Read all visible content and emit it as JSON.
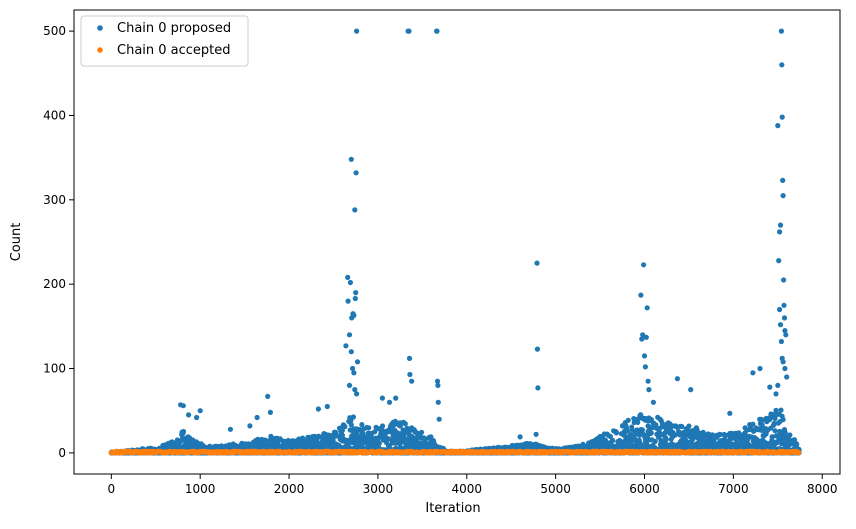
{
  "chart_data": {
    "type": "scatter",
    "xlabel": "Iteration",
    "ylabel": "Count",
    "xlim": [
      -420,
      8200
    ],
    "ylim": [
      -25,
      525
    ],
    "xticks": [
      0,
      1000,
      2000,
      3000,
      4000,
      5000,
      6000,
      7000,
      8000
    ],
    "yticks": [
      0,
      100,
      200,
      300,
      400,
      500
    ],
    "legend_position": "top-left",
    "grid": false,
    "series": [
      {
        "name": "Chain 0 proposed",
        "color": "#1f77b4",
        "x_range": [
          0,
          7740
        ],
        "baseline_points": [
          [
            0,
            1
          ],
          [
            100,
            2
          ],
          [
            200,
            3
          ],
          [
            300,
            4
          ],
          [
            400,
            6
          ],
          [
            500,
            5
          ],
          [
            600,
            10
          ],
          [
            700,
            14
          ],
          [
            750,
            20
          ],
          [
            800,
            30
          ],
          [
            850,
            22
          ],
          [
            900,
            18
          ],
          [
            1000,
            12
          ],
          [
            1100,
            8
          ],
          [
            1200,
            8
          ],
          [
            1300,
            10
          ],
          [
            1400,
            12
          ],
          [
            1500,
            14
          ],
          [
            1600,
            16
          ],
          [
            1700,
            18
          ],
          [
            1800,
            20
          ],
          [
            1900,
            18
          ],
          [
            2000,
            17
          ],
          [
            2100,
            18
          ],
          [
            2200,
            20
          ],
          [
            2300,
            22
          ],
          [
            2400,
            25
          ],
          [
            2500,
            28
          ],
          [
            2600,
            32
          ],
          [
            2700,
            45
          ],
          [
            2750,
            40
          ],
          [
            2800,
            35
          ],
          [
            2900,
            30
          ],
          [
            3000,
            32
          ],
          [
            3100,
            35
          ],
          [
            3200,
            38
          ],
          [
            3300,
            40
          ],
          [
            3400,
            30
          ],
          [
            3500,
            25
          ],
          [
            3600,
            20
          ],
          [
            3700,
            8
          ],
          [
            3800,
            2
          ],
          [
            3900,
            2
          ],
          [
            4000,
            3
          ],
          [
            4100,
            4
          ],
          [
            4200,
            5
          ],
          [
            4300,
            6
          ],
          [
            4400,
            7
          ],
          [
            4500,
            9
          ],
          [
            4600,
            10
          ],
          [
            4700,
            12
          ],
          [
            4800,
            10
          ],
          [
            4900,
            6
          ],
          [
            5000,
            6
          ],
          [
            5100,
            6
          ],
          [
            5200,
            8
          ],
          [
            5300,
            10
          ],
          [
            5400,
            14
          ],
          [
            5500,
            20
          ],
          [
            5600,
            25
          ],
          [
            5700,
            30
          ],
          [
            5800,
            38
          ],
          [
            5900,
            45
          ],
          [
            6000,
            50
          ],
          [
            6100,
            45
          ],
          [
            6200,
            40
          ],
          [
            6300,
            38
          ],
          [
            6400,
            35
          ],
          [
            6500,
            32
          ],
          [
            6600,
            30
          ],
          [
            6700,
            25
          ],
          [
            6800,
            22
          ],
          [
            6900,
            22
          ],
          [
            7000,
            24
          ],
          [
            7100,
            28
          ],
          [
            7200,
            35
          ],
          [
            7300,
            42
          ],
          [
            7400,
            48
          ],
          [
            7500,
            55
          ],
          [
            7560,
            60
          ],
          [
            7600,
            30
          ],
          [
            7700,
            15
          ],
          [
            7740,
            10
          ]
        ],
        "outliers": [
          [
            780,
            57
          ],
          [
            810,
            56
          ],
          [
            870,
            45
          ],
          [
            960,
            42
          ],
          [
            1000,
            50
          ],
          [
            1340,
            28
          ],
          [
            1560,
            32
          ],
          [
            1640,
            42
          ],
          [
            1760,
            67
          ],
          [
            1790,
            48
          ],
          [
            2330,
            52
          ],
          [
            2430,
            55
          ],
          [
            2640,
            127
          ],
          [
            2660,
            208
          ],
          [
            2690,
            202
          ],
          [
            2700,
            348
          ],
          [
            2705,
            160
          ],
          [
            2720,
            165
          ],
          [
            2730,
            163
          ],
          [
            2740,
            288
          ],
          [
            2745,
            183
          ],
          [
            2750,
            190
          ],
          [
            2755,
            332
          ],
          [
            2760,
            500
          ],
          [
            2770,
            108
          ],
          [
            2665,
            180
          ],
          [
            2680,
            140
          ],
          [
            2700,
            120
          ],
          [
            2715,
            100
          ],
          [
            2730,
            95
          ],
          [
            2680,
            80
          ],
          [
            2740,
            75
          ],
          [
            2760,
            70
          ],
          [
            3050,
            65
          ],
          [
            3130,
            60
          ],
          [
            3200,
            65
          ],
          [
            3340,
            500
          ],
          [
            3350,
            500
          ],
          [
            3355,
            112
          ],
          [
            3360,
            93
          ],
          [
            3380,
            85
          ],
          [
            3660,
            500
          ],
          [
            3665,
            500
          ],
          [
            3670,
            85
          ],
          [
            3675,
            80
          ],
          [
            3680,
            60
          ],
          [
            3690,
            40
          ],
          [
            4790,
            225
          ],
          [
            4795,
            123
          ],
          [
            4800,
            77
          ],
          [
            4780,
            22
          ],
          [
            4600,
            19
          ],
          [
            5960,
            187
          ],
          [
            5990,
            223
          ],
          [
            6000,
            115
          ],
          [
            6010,
            102
          ],
          [
            6020,
            137
          ],
          [
            6030,
            172
          ],
          [
            5980,
            140
          ],
          [
            5970,
            135
          ],
          [
            6040,
            85
          ],
          [
            6050,
            75
          ],
          [
            6100,
            60
          ],
          [
            6370,
            88
          ],
          [
            6520,
            75
          ],
          [
            6960,
            47
          ],
          [
            7220,
            95
          ],
          [
            7300,
            100
          ],
          [
            7410,
            78
          ],
          [
            7500,
            388
          ],
          [
            7510,
            228
          ],
          [
            7520,
            262
          ],
          [
            7530,
            270
          ],
          [
            7540,
            500
          ],
          [
            7545,
            460
          ],
          [
            7550,
            398
          ],
          [
            7555,
            323
          ],
          [
            7560,
            305
          ],
          [
            7565,
            205
          ],
          [
            7570,
            175
          ],
          [
            7575,
            160
          ],
          [
            7580,
            145
          ],
          [
            7590,
            140
          ],
          [
            7520,
            170
          ],
          [
            7530,
            152
          ],
          [
            7540,
            132
          ],
          [
            7550,
            112
          ],
          [
            7560,
            108
          ],
          [
            7580,
            100
          ],
          [
            7600,
            90
          ],
          [
            7500,
            80
          ],
          [
            7480,
            70
          ]
        ]
      },
      {
        "name": "Chain 0 accepted",
        "color": "#ff7f0e",
        "x_range": [
          0,
          7740
        ],
        "values_approx": [
          0,
          2
        ]
      }
    ]
  }
}
